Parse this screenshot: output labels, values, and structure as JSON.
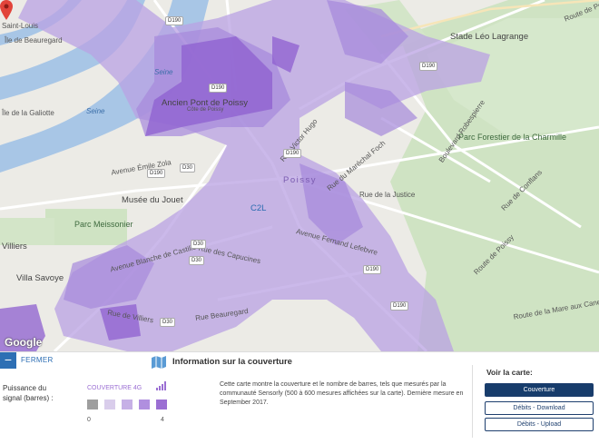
{
  "map": {
    "labels": {
      "saint_louis": "Saint-Louis",
      "ile_beauregard": "Île de Beauregard",
      "ile_galiotte": "Île de la Galiotte",
      "seine1": "Seine",
      "seine2": "Seine",
      "ancien_pont": "Ancien Pont de Poissy",
      "cote_de_poissy": "Côte de Poissy",
      "musee_jouet": "Musée du Jouet",
      "parc_meissonier": "Parc Meissonier",
      "villiers": "Villiers",
      "villa_savoye": "Villa Savoye",
      "stade_leo": "Stade Léo Lagrange",
      "parc_forestier": "Parc Forestier de la Charmille",
      "poissy": "Poissy",
      "c2l": "C2L",
      "route_de_poissy": "Route de Poissy",
      "rue_general_foch": "Rue du Maréchal Foch",
      "av_fernand_lefebvre": "Avenue Fernand Lefebvre",
      "rue_capucines": "Rue des Capucines",
      "av_blanche_castille": "Avenue Blanche de Castille",
      "rue_beauregard": "Rue Beauregard",
      "rue_victor_hugo": "Rue Victor Hugo",
      "bd_robespierre": "Boulevard Robespierre",
      "rue_de_villiers": "Rue de Villiers",
      "rue_justice": "Rue de la Justice",
      "av_emile_zola": "Avenue Émile Zola",
      "rue_de_la_maison_aux_cannes": "Route de la Mare aux Canes",
      "rue_de_poissy_bottom": "Route de Poissy",
      "rue_de_conflans": "Rue de Conflans"
    },
    "road_signs": [
      "D190",
      "D190",
      "D30",
      "D30",
      "D190",
      "D190",
      "D30",
      "D190",
      "D190",
      "D30",
      "D190"
    ],
    "google": "Google"
  },
  "panel": {
    "close_symbol": "−",
    "close_label": "FERMER",
    "info_title": "Information sur la couverture",
    "legend_label": "Puissance du signal (barres) :",
    "legend_title": "COUVERTURE 4G",
    "scale_min": "0",
    "scale_max": "4",
    "description": "Cette carte montre la couverture et le nombre de barres, tels que mesurés par la communauté Sensorly (500 à 600 mesures affichées sur la carte). Dernière mesure en September 2017.",
    "see_map_title": "Voir la carte:",
    "buttons": {
      "coverage": "Couverture",
      "download": "Débits - Download",
      "upload": "Débits - Upload"
    }
  },
  "colors": {
    "accent_blue": "#2d6fb4",
    "button_dark": "#173c6b",
    "legend_levels": [
      "#9e9e9e",
      "#d9cdeb",
      "#c6b0e6",
      "#b08fdf",
      "#9b6fd3"
    ]
  }
}
